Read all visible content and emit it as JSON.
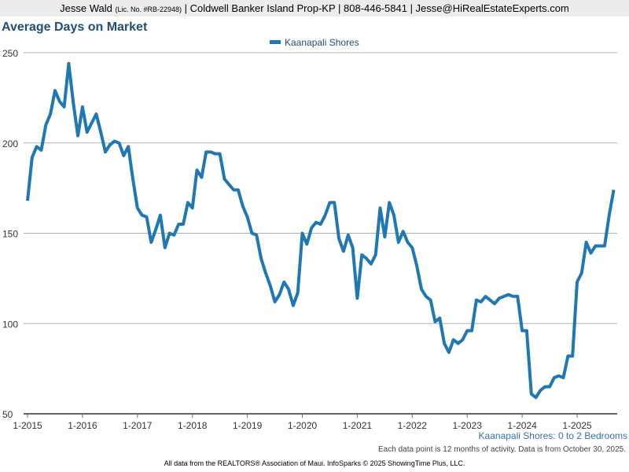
{
  "header": {
    "name": "Jesse Wald",
    "license": "(Lic. No. #RB-22948)",
    "rest": "| Coldwell Banker Island Prop-KP | 808-446-5841 | Jesse@HiRealEstateExperts.com"
  },
  "subtitle": "Kaanapali Shores: 0 to 2 Bedrooms",
  "note": "Each data point is 12 months of activity. Data is from October 30, 2025.",
  "footer": "All data from the REALTORS® Association of Maui. InfoSparks © 2025 ShowingTime Plus, LLC.",
  "chart_data": {
    "type": "line",
    "title": "Average Days on Market",
    "xlabel": "",
    "ylabel": "",
    "ylim": [
      50,
      250
    ],
    "yticks": [
      50,
      100,
      150,
      200,
      250
    ],
    "xticks": [
      "1-2015",
      "1-2016",
      "1-2017",
      "1-2018",
      "1-2019",
      "1-2020",
      "1-2021",
      "1-2022",
      "1-2023",
      "1-2024",
      "1-2025"
    ],
    "x_start": "2015-01",
    "x_interval": "monthly",
    "grid": true,
    "legend": "top-center",
    "series": [
      {
        "name": "Kaanapali Shores",
        "color": "#1f77b4",
        "values": [
          168,
          192,
          198,
          196,
          210,
          216,
          229,
          223,
          220,
          244,
          222,
          204,
          220,
          206,
          211,
          216,
          206,
          195,
          199,
          201,
          200,
          193,
          198,
          180,
          164,
          160,
          159,
          145,
          152,
          160,
          142,
          150,
          149,
          155,
          155,
          167,
          164,
          185,
          181,
          195,
          195,
          194,
          194,
          180,
          177,
          174,
          174,
          165,
          159,
          150,
          149,
          136,
          128,
          121,
          112,
          116,
          123,
          119,
          110,
          117,
          150,
          144,
          153,
          156,
          155,
          160,
          167,
          167,
          147,
          140,
          149,
          142,
          114,
          138,
          136,
          133,
          138,
          164,
          148,
          167,
          160,
          145,
          151,
          145,
          142,
          132,
          119,
          115,
          113,
          101,
          103,
          89,
          84,
          91,
          89,
          91,
          96,
          96,
          113,
          112,
          115,
          113,
          111,
          114,
          115,
          116,
          115,
          115,
          96,
          96,
          61,
          59,
          63,
          65,
          65,
          70,
          71,
          70,
          82,
          82,
          123,
          128,
          145,
          139,
          143,
          143,
          143,
          160,
          174
        ]
      }
    ]
  }
}
